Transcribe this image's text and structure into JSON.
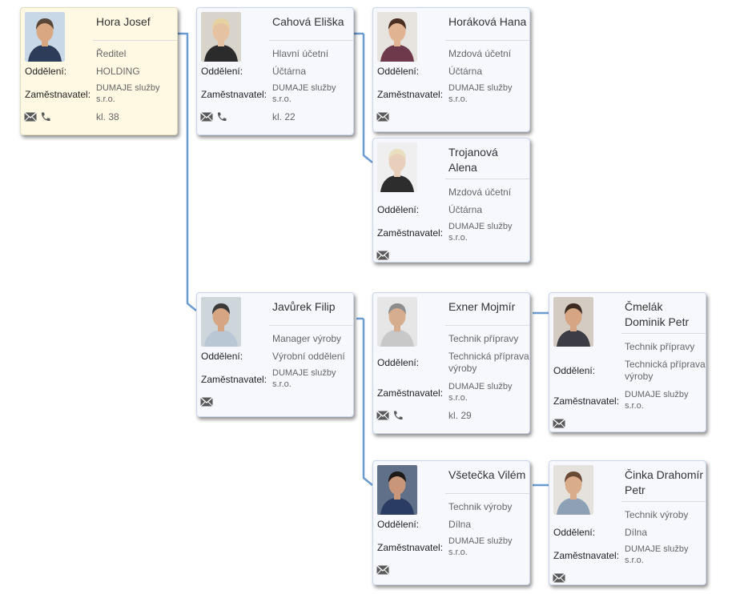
{
  "labels": {
    "department": "Oddělení:",
    "employer": "Zaměstnavatel:"
  },
  "colors": {
    "connector": "#6b9bd1",
    "card_background": "#f6f8fe",
    "root_background": "#fff9e3"
  },
  "people": [
    {
      "id": "hora",
      "name": "Hora Josef",
      "position": "Ředitel",
      "department": "HOLDING",
      "employer": "DUMAJE služby s.r.o.",
      "extension": "kl. 38",
      "has_phone": true
    },
    {
      "id": "cahova",
      "name": "Cahová Eliška",
      "position": "Hlavní účetní",
      "department": "Účtárna",
      "employer": "DUMAJE služby s.r.o.",
      "extension": "kl. 22",
      "has_phone": true
    },
    {
      "id": "horakova",
      "name": "Horáková Hana",
      "position": "Mzdová účetní",
      "department": "Účtárna",
      "employer": "DUMAJE služby s.r.o.",
      "extension": "",
      "has_phone": false
    },
    {
      "id": "trojanova",
      "name": "Trojanová Alena",
      "position": "Mzdová účetní",
      "department": "Účtárna",
      "employer": "DUMAJE služby s.r.o.",
      "extension": "",
      "has_phone": false
    },
    {
      "id": "javurek",
      "name": "Javůrek Filip",
      "position": "Manager výroby",
      "department": "Výrobní oddělení",
      "employer": "DUMAJE služby s.r.o.",
      "extension": "",
      "has_phone": false
    },
    {
      "id": "exner",
      "name": "Exner Mojmír",
      "position": "Technik přípravy",
      "department": "Technická příprava výroby",
      "employer": "DUMAJE služby s.r.o.",
      "extension": "kl. 29",
      "has_phone": true
    },
    {
      "id": "cmelak",
      "name": "Čmelák Dominik Petr",
      "position": "Technik přípravy",
      "department": "Technická příprava výroby",
      "employer": "DUMAJE služby s.r.o.",
      "extension": "",
      "has_phone": false
    },
    {
      "id": "vsetecka",
      "name": "Všetečka Vilém",
      "position": "Technik výroby",
      "department": "Dílna",
      "employer": "DUMAJE služby s.r.o.",
      "extension": "",
      "has_phone": false
    },
    {
      "id": "cinka",
      "name": "Činka Drahomír Petr",
      "position": "Technik výroby",
      "department": "Dílna",
      "employer": "DUMAJE služby s.r.o.",
      "extension": "",
      "has_phone": false
    }
  ]
}
